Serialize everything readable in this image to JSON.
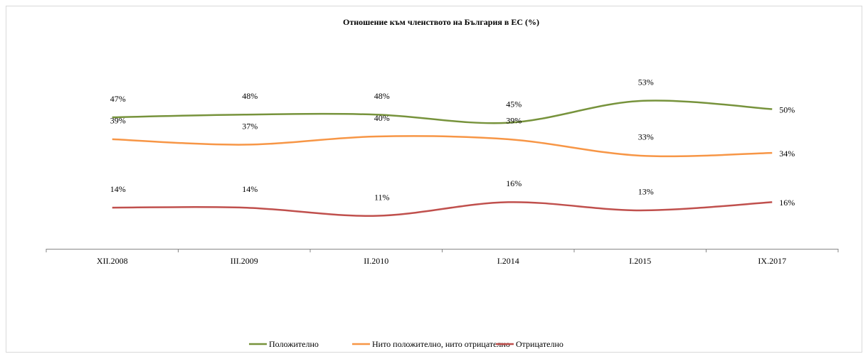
{
  "chart_data": {
    "type": "line",
    "title": "Отношение към членството на България в ЕС (%)",
    "categories": [
      "XII.2008",
      "III.2009",
      "II.2010",
      "I.2014",
      "I.2015",
      "IX.2017"
    ],
    "series": [
      {
        "name": "Положително",
        "color": "#77933c",
        "values": [
          47,
          48,
          48,
          45,
          53,
          50
        ],
        "value_labels": [
          "47%",
          "48%",
          "48%",
          "45%",
          "53%",
          "50%"
        ]
      },
      {
        "name": "Нито положително,  нито отрицателно",
        "color": "#f79646",
        "values": [
          39,
          37,
          40,
          39,
          33,
          34
        ],
        "value_labels": [
          "39%",
          "37%",
          "40%",
          "39%",
          "33%",
          "34%"
        ]
      },
      {
        "name": "Отрицателно",
        "color": "#c0504d",
        "values": [
          14,
          14,
          11,
          16,
          13,
          16
        ],
        "value_labels": [
          "14%",
          "14%",
          "11%",
          "16%",
          "13%",
          "16%"
        ]
      }
    ]
  }
}
